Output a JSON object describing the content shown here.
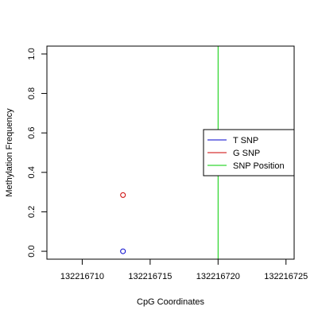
{
  "chart_data": {
    "type": "scatter",
    "xlabel": "CpG Coordinates",
    "ylabel": "Methylation Frequency",
    "xlim": [
      132216707.4,
      132216725.6
    ],
    "ylim": [
      -0.04,
      1.04
    ],
    "x_ticks": [
      132216710,
      132216715,
      132216720,
      132216725
    ],
    "x_tick_labels": [
      "132216710",
      "132216715",
      "132216720",
      "132216725"
    ],
    "y_ticks": [
      0.0,
      0.2,
      0.4,
      0.6,
      0.8,
      1.0
    ],
    "y_tick_labels": [
      "0.0",
      "0.2",
      "0.4",
      "0.6",
      "0.8",
      "1.0"
    ],
    "series": [
      {
        "name": "T SNP",
        "color": "#0000cc",
        "marker": "open-circle",
        "points": [
          {
            "x": 132216713,
            "y": 0.0
          }
        ]
      },
      {
        "name": "G SNP",
        "color": "#cc0000",
        "marker": "open-circle",
        "points": [
          {
            "x": 132216713,
            "y": 0.285
          }
        ]
      }
    ],
    "vlines": [
      {
        "name": "SNP Position",
        "x": 132216720,
        "color": "#00cc00"
      }
    ],
    "legend": {
      "placement": "right",
      "entries": [
        {
          "label": "T SNP",
          "color": "#0000cc"
        },
        {
          "label": "G SNP",
          "color": "#cc0000"
        },
        {
          "label": "SNP Position",
          "color": "#00cc00"
        }
      ]
    },
    "grid": false
  }
}
